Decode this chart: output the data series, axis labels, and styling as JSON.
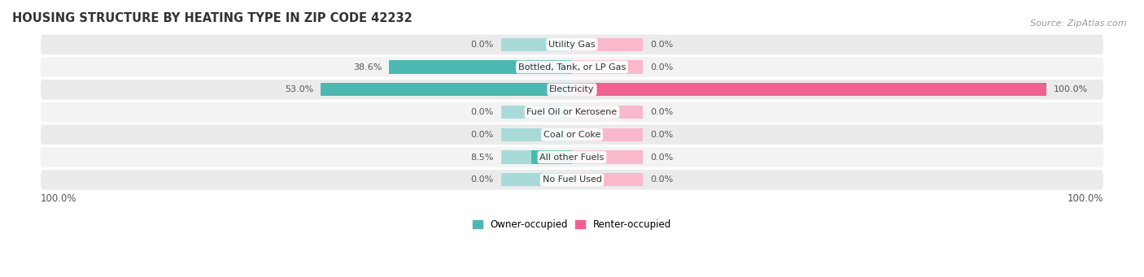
{
  "title": "HOUSING STRUCTURE BY HEATING TYPE IN ZIP CODE 42232",
  "source_text": "Source: ZipAtlas.com",
  "categories": [
    "Utility Gas",
    "Bottled, Tank, or LP Gas",
    "Electricity",
    "Fuel Oil or Kerosene",
    "Coal or Coke",
    "All other Fuels",
    "No Fuel Used"
  ],
  "owner_values": [
    0.0,
    38.6,
    53.0,
    0.0,
    0.0,
    8.5,
    0.0
  ],
  "renter_values": [
    0.0,
    0.0,
    100.0,
    0.0,
    0.0,
    0.0,
    0.0
  ],
  "owner_color": "#4db8b2",
  "owner_bg_color": "#a8dbd8",
  "renter_color": "#f06090",
  "renter_bg_color": "#f9b8cc",
  "owner_label": "Owner-occupied",
  "renter_label": "Renter-occupied",
  "row_bg_colors": [
    "#ebebeb",
    "#f3f3f3",
    "#ebebeb",
    "#f3f3f3",
    "#ebebeb",
    "#f3f3f3",
    "#ebebeb"
  ],
  "axis_label_left": "100.0%",
  "axis_label_right": "100.0%",
  "max_value": 100.0,
  "label_fontsize": 8.5,
  "title_fontsize": 10.5,
  "source_fontsize": 8,
  "category_fontsize": 8,
  "value_fontsize": 8
}
